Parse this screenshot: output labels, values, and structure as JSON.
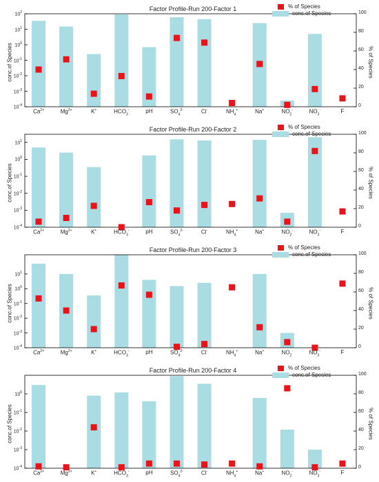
{
  "chart_data": [
    {
      "type": "bar",
      "title": "Factor Profile-Run 200-Factor 1",
      "categories": [
        "Ca2+",
        "Mg2+",
        "K+",
        "HCO3-",
        "pH",
        "SO42-",
        "Cl-",
        "NH4+",
        "Na+",
        "NO2-",
        "NO3-",
        "F"
      ],
      "series": [
        {
          "name": "conc.of Species",
          "axis": "left",
          "scale": "log",
          "values": [
            35,
            15,
            0.25,
            90,
            0.7,
            60,
            45,
            null,
            25,
            0.00025,
            5,
            null
          ]
        },
        {
          "name": "% of Species",
          "axis": "right",
          "marker": "square",
          "values": [
            40,
            51,
            14,
            33,
            11,
            74,
            69,
            4,
            46,
            2,
            19,
            9
          ]
        }
      ],
      "ylabel": "conc.of Species",
      "y2label": "% of Species",
      "ylim": [
        0.0001,
        100
      ],
      "y2lim": [
        0,
        100
      ],
      "yticks": [
        "10-4",
        "10-3",
        "10-2",
        "10-1",
        "100",
        "101",
        "102"
      ],
      "y2ticks": [
        0,
        20,
        40,
        60,
        80,
        100
      ],
      "legend": "top-right",
      "colors": {
        "bar": "#a9dce3",
        "marker": "#e8141c"
      }
    },
    {
      "type": "bar",
      "title": "Factor Profile-Run 200-Factor 2",
      "categories": [
        "Ca2+",
        "Mg2+",
        "K+",
        "HCO3-",
        "pH",
        "SO42-",
        "Cl-",
        "NH4+",
        "Na+",
        "NO2-",
        "NO3-",
        "F"
      ],
      "series": [
        {
          "name": "conc.of Species",
          "axis": "left",
          "scale": "log",
          "values": [
            5,
            2.5,
            0.35,
            null,
            1.7,
            15,
            13,
            null,
            14,
            0.0007,
            20,
            null
          ]
        },
        {
          "name": "% of Species",
          "axis": "right",
          "marker": "square",
          "values": [
            6,
            10,
            23,
            0,
            27,
            18,
            24,
            25,
            31,
            6,
            82,
            17
          ]
        }
      ],
      "ylabel": "conc.of Species",
      "y2label": "% of Species",
      "ylim": [
        0.0001,
        30
      ],
      "y2lim": [
        0,
        100
      ],
      "yticks": [
        "10-4",
        "10-3",
        "10-2",
        "10-1",
        "100",
        "101"
      ],
      "y2ticks": [
        0,
        20,
        40,
        60,
        80,
        100
      ],
      "legend": "top-right",
      "colors": {
        "bar": "#a9dce3",
        "marker": "#e8141c"
      }
    },
    {
      "type": "bar",
      "title": "Factor Profile-Run 200-Factor 3",
      "categories": [
        "Ca2+",
        "Mg2+",
        "K+",
        "HCO3-",
        "pH",
        "SO42-",
        "Cl-",
        "NH4+",
        "Na+",
        "NO2-",
        "NO3-",
        "F"
      ],
      "series": [
        {
          "name": "conc.of Species",
          "axis": "left",
          "scale": "log",
          "values": [
            50,
            10,
            0.35,
            200,
            4,
            1.5,
            2.5,
            null,
            10,
            0.001,
            null,
            null
          ]
        },
        {
          "name": "% of Species",
          "axis": "right",
          "marker": "square",
          "values": [
            53,
            40,
            20,
            67,
            57,
            1,
            4,
            65,
            22,
            6,
            0,
            69
          ]
        }
      ],
      "ylabel": "conc.of Species",
      "y2label": "% of Species",
      "ylim": [
        0.0001,
        200
      ],
      "y2lim": [
        0,
        100
      ],
      "yticks": [
        "10-4",
        "10-3",
        "10-2",
        "10-1",
        "100",
        "101"
      ],
      "y2ticks": [
        0,
        20,
        40,
        60,
        80,
        100
      ],
      "legend": "top-right",
      "colors": {
        "bar": "#a9dce3",
        "marker": "#e8141c"
      }
    },
    {
      "type": "bar",
      "title": "Factor Profile-Run 200-Factor 4",
      "categories": [
        "Ca2+",
        "Mg2+",
        "K+",
        "HCO3-",
        "pH",
        "SO42-",
        "Cl-",
        "NH4+",
        "Na+",
        "NO2-",
        "NO3-",
        "F"
      ],
      "series": [
        {
          "name": "conc.of Species",
          "axis": "left",
          "scale": "log",
          "values": [
            3,
            null,
            0.8,
            1.2,
            0.4,
            9,
            3.5,
            null,
            0.6,
            0.012,
            0.001,
            null
          ]
        },
        {
          "name": "% of Species",
          "axis": "right",
          "marker": "square",
          "values": [
            2,
            1,
            44,
            1,
            5,
            5,
            4,
            5,
            2,
            86,
            1,
            5
          ]
        }
      ],
      "ylabel": "conc.of Species",
      "y2label": "% of Species",
      "ylim": [
        0.0001,
        10
      ],
      "y2lim": [
        0,
        100
      ],
      "yticks": [
        "10-4",
        "10-3",
        "10-2",
        "10-1",
        "100"
      ],
      "y2ticks": [
        0,
        20,
        40,
        60,
        80,
        100
      ],
      "legend": "top-right",
      "colors": {
        "bar": "#a9dce3",
        "marker": "#e8141c"
      }
    }
  ],
  "xtick_labels": [
    {
      "base": "Ca",
      "sup": "2+",
      "sub": ""
    },
    {
      "base": "Mg",
      "sup": "2+",
      "sub": ""
    },
    {
      "base": "K",
      "sup": "+",
      "sub": ""
    },
    {
      "base": "HCO",
      "sup": "-",
      "sub": "3"
    },
    {
      "base": "pH",
      "sup": "",
      "sub": ""
    },
    {
      "base": "SO",
      "sup": "2-",
      "sub": "4"
    },
    {
      "base": "Cl",
      "sup": "-",
      "sub": ""
    },
    {
      "base": "NH",
      "sup": "+",
      "sub": "4"
    },
    {
      "base": "Na",
      "sup": "+",
      "sub": ""
    },
    {
      "base": "NO",
      "sup": "-",
      "sub": "2"
    },
    {
      "base": "NO",
      "sup": "-",
      "sub": "3"
    },
    {
      "base": "F",
      "sup": "",
      "sub": ""
    }
  ],
  "ytick_base": "10"
}
